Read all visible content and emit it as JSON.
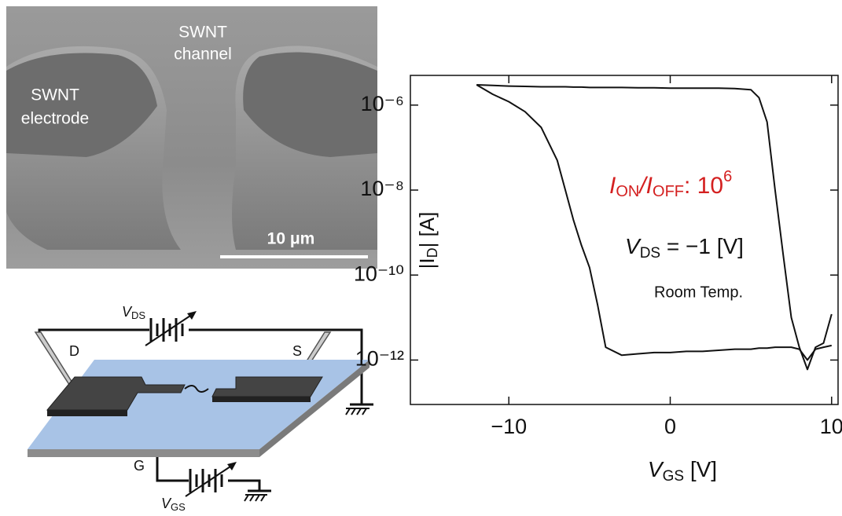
{
  "sem_image": {
    "channel_label": [
      "SWNT",
      "channel"
    ],
    "electrode_label": [
      "SWNT",
      "electrode"
    ],
    "scale_bar_label": "10 μm"
  },
  "diagram": {
    "vds_label": [
      "V",
      "DS"
    ],
    "drain_label": "D",
    "source_label": "S",
    "gate_label": "G",
    "vgs_label": [
      "V",
      "GS"
    ]
  },
  "chart_data": {
    "type": "line",
    "x": [
      -12,
      -11,
      -10,
      -9,
      -8,
      -7,
      -6.5,
      -6,
      -5.5,
      -5,
      -4.5,
      -4,
      -3,
      -2,
      -1,
      0,
      1,
      2,
      3,
      4,
      5,
      5.5,
      6,
      6.5,
      7,
      7.5,
      8,
      8.5,
      9,
      9.5,
      10
    ],
    "series": [
      {
        "color": "#111111",
        "values": [
          3e-06,
          2.9e-06,
          2.8e-06,
          2.75e-06,
          2.7e-06,
          2.7e-06,
          2.7e-06,
          2.65e-06,
          2.65e-06,
          2.6e-06,
          2.6e-06,
          2.6e-06,
          2.6e-06,
          2.55e-06,
          2.55e-06,
          2.5e-06,
          2.5e-06,
          2.5e-06,
          2.5e-06,
          2.45e-06,
          2.3e-06,
          1.5e-06,
          4e-07,
          1e-08,
          3e-10,
          1e-11,
          2e-12,
          6e-13,
          2e-12,
          2.5e-12,
          1.2e-11
        ]
      },
      {
        "color": "#111111",
        "values": [
          3e-06,
          1.8e-06,
          1.2e-06,
          7e-07,
          3e-07,
          5e-08,
          1e-08,
          2e-09,
          5e-10,
          1.5e-10,
          2e-11,
          2e-12,
          1.3e-12,
          1.4e-12,
          1.5e-12,
          1.5e-12,
          1.6e-12,
          1.6e-12,
          1.7e-12,
          1.8e-12,
          1.8e-12,
          1.9e-12,
          1.9e-12,
          2e-12,
          2e-12,
          2e-12,
          1.8e-12,
          1e-12,
          1.8e-12,
          2e-12,
          2.2e-12
        ]
      }
    ],
    "xlim": [
      -16.1,
      10.4
    ],
    "ylim": [
      5e-06,
      9e-14
    ],
    "log_y": true,
    "xticks": [
      {
        "value": -10,
        "label": "−10"
      },
      0,
      10
    ],
    "yticks": [
      {
        "value": 1e-06,
        "label": "10⁻⁶"
      },
      {
        "value": 1e-08,
        "label": "10⁻⁸"
      },
      {
        "value": 1e-10,
        "label": "10⁻¹⁰"
      },
      {
        "value": 1e-12,
        "label": "10⁻¹²"
      }
    ],
    "x_label": [
      "V",
      "GS",
      " [V]"
    ],
    "y_label": [
      "|I",
      "D",
      "| [A]"
    ],
    "ratio_annotation": [
      "I",
      "ON",
      "/I",
      "OFF",
      ": 10",
      "6"
    ],
    "vds_annotation": [
      "V",
      "DS",
      "  = −1 [V]"
    ],
    "temp_annotation": "Room Temp."
  }
}
